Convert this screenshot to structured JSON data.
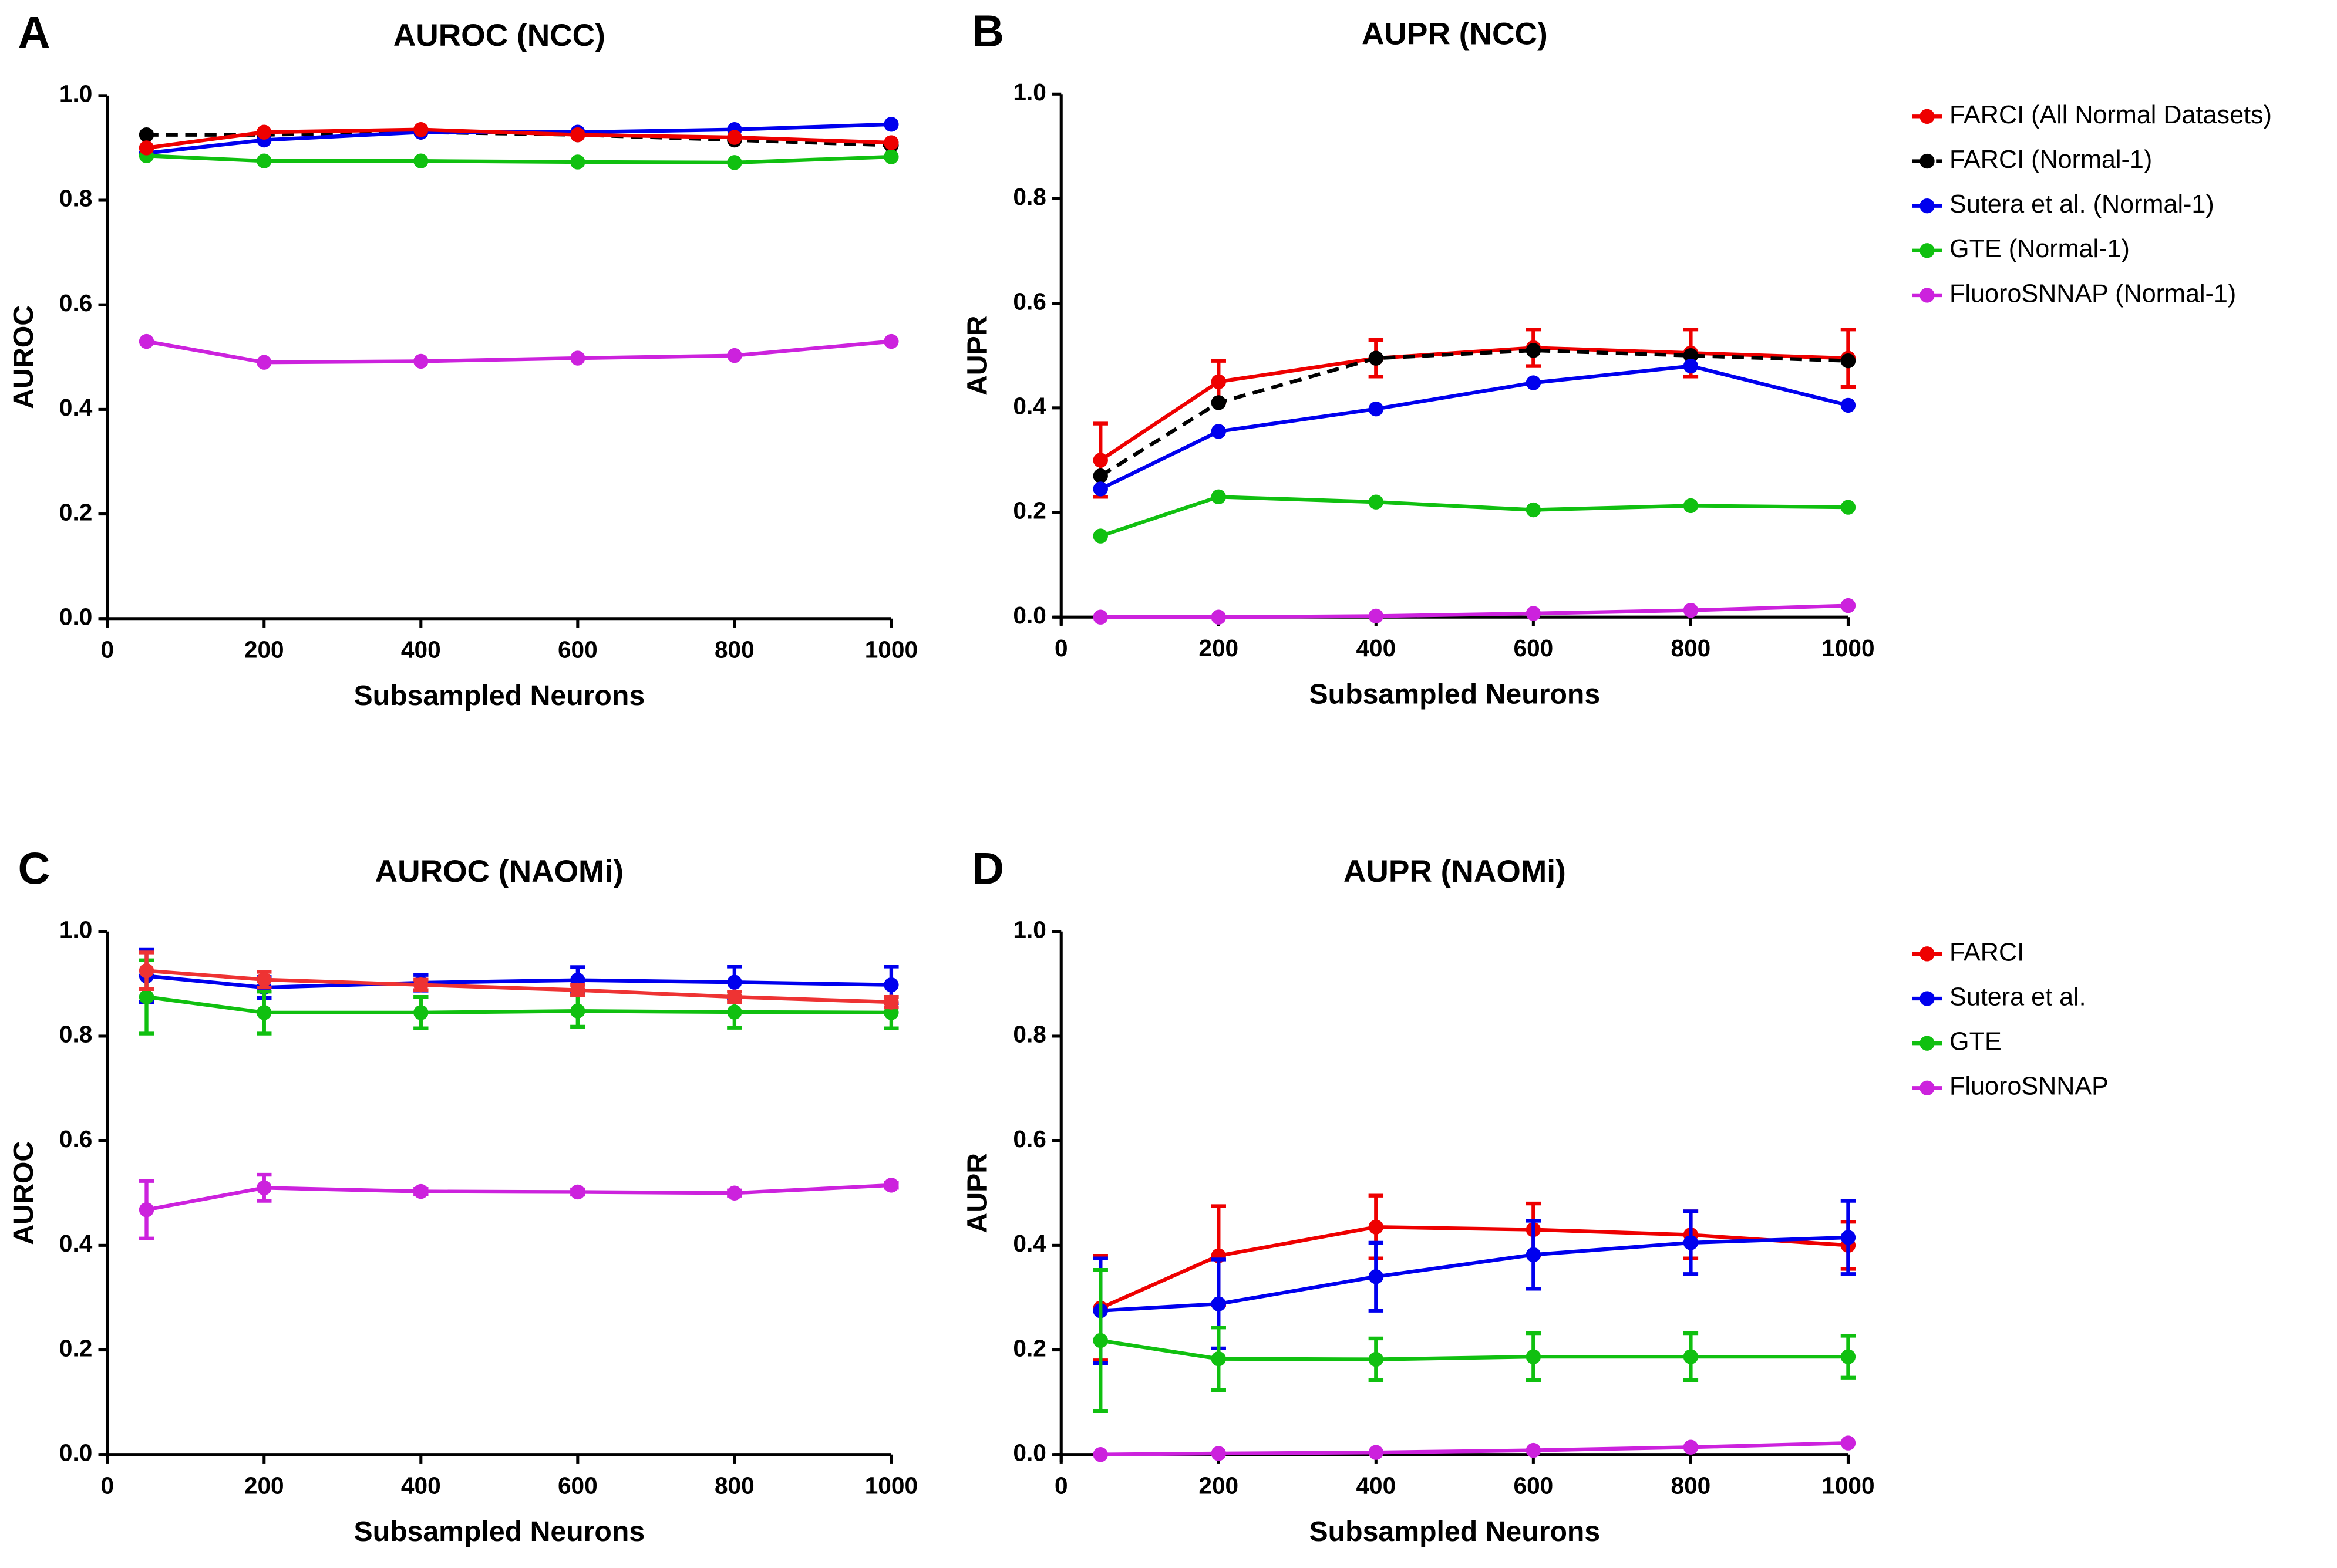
{
  "chart_data": [
    {
      "type": "line",
      "panel": "A",
      "title": "AUROC (NCC)",
      "xlabel": "Subsampled Neurons",
      "ylabel": "AUROC",
      "x": [
        50,
        200,
        400,
        600,
        800,
        1000
      ],
      "xlim": [
        0,
        1000
      ],
      "xticks": [
        0,
        200,
        400,
        600,
        800,
        1000
      ],
      "ylim": [
        0,
        1
      ],
      "yticks": [
        {
          "value": 0,
          "label": "0.0"
        },
        0.2,
        0.4,
        0.6,
        0.8,
        {
          "value": 1,
          "label": "1.0"
        }
      ],
      "series": [
        {
          "color": "#000000",
          "line_style": "dashed",
          "values": [
            0.925,
            0.925,
            0.93,
            0.925,
            0.915,
            0.905
          ]
        },
        {
          "color": "#0000ee",
          "line_style": "solid",
          "values": [
            0.89,
            0.915,
            0.93,
            0.93,
            0.935,
            0.945
          ]
        },
        {
          "color": "#10c010",
          "line_style": "solid",
          "values": [
            0.885,
            0.875,
            0.875,
            0.873,
            0.872,
            0.883
          ]
        },
        {
          "color": "#cc22dd",
          "line_style": "solid",
          "values": [
            0.53,
            0.49,
            0.492,
            0.498,
            0.503,
            0.53
          ]
        },
        {
          "color": "#ee0000",
          "line_style": "solid",
          "values": [
            0.9,
            0.93,
            0.935,
            0.925,
            0.92,
            0.91
          ]
        }
      ]
    },
    {
      "type": "line",
      "panel": "B",
      "title": "AUPR (NCC)",
      "xlabel": "Subsampled Neurons",
      "ylabel": "AUPR",
      "legend": "right",
      "x": [
        50,
        200,
        400,
        600,
        800,
        1000
      ],
      "xlim": [
        0,
        1000
      ],
      "xticks": [
        0,
        200,
        400,
        600,
        800,
        1000
      ],
      "ylim": [
        0,
        1
      ],
      "yticks": [
        {
          "value": 0,
          "label": "0.0"
        },
        0.2,
        0.4,
        0.6,
        0.8,
        {
          "value": 1,
          "label": "1.0"
        }
      ],
      "series": [
        {
          "name": "FARCI (All Normal Datasets)",
          "color": "#ee0000",
          "line_style": "solid",
          "values": [
            0.3,
            0.45,
            0.495,
            0.515,
            0.505,
            0.495
          ],
          "errors": [
            0.07,
            0.04,
            0.035,
            0.035,
            0.045,
            0.055
          ]
        },
        {
          "name": "FARCI (Normal-1)",
          "color": "#000000",
          "line_style": "dashed",
          "values": [
            0.27,
            0.41,
            0.495,
            0.51,
            0.5,
            0.49
          ]
        },
        {
          "name": "Sutera et al. (Normal-1)",
          "color": "#0000ee",
          "line_style": "solid",
          "values": [
            0.245,
            0.355,
            0.398,
            0.448,
            0.48,
            0.405
          ]
        },
        {
          "name": "GTE (Normal-1)",
          "color": "#10c010",
          "line_style": "solid",
          "values": [
            0.155,
            0.23,
            0.22,
            0.205,
            0.213,
            0.21
          ]
        },
        {
          "name": "FluoroSNNAP (Normal-1)",
          "color": "#cc22dd",
          "line_style": "solid",
          "values": [
            0,
            0,
            0.002,
            0.007,
            0.013,
            0.022
          ]
        }
      ]
    },
    {
      "type": "line",
      "panel": "C",
      "title": "AUROC (NAOMi)",
      "xlabel": "Subsampled Neurons",
      "ylabel": "AUROC",
      "x": [
        50,
        200,
        400,
        600,
        800,
        1000
      ],
      "xlim": [
        0,
        1000
      ],
      "xticks": [
        0,
        200,
        400,
        600,
        800,
        1000
      ],
      "ylim": [
        0,
        1
      ],
      "yticks": [
        {
          "value": 0,
          "label": "0.0"
        },
        0.2,
        0.4,
        0.6,
        0.8,
        {
          "value": 1,
          "label": "1.0"
        }
      ],
      "series": [
        {
          "color": "#0000ee",
          "line_style": "solid",
          "values": [
            0.915,
            0.893,
            0.902,
            0.907,
            0.903,
            0.898
          ],
          "errors": [
            0.05,
            0.02,
            0.015,
            0.025,
            0.03,
            0.035
          ]
        },
        {
          "color": "#10c010",
          "line_style": "solid",
          "values": [
            0.875,
            0.845,
            0.845,
            0.848,
            0.846,
            0.845
          ],
          "errors": [
            0.07,
            0.04,
            0.03,
            0.03,
            0.03,
            0.03
          ]
        },
        {
          "color": "#cc22dd",
          "line_style": "solid",
          "values": [
            0.468,
            0.51,
            0.503,
            0.502,
            0.5,
            0.515
          ],
          "errors": [
            0.055,
            0.025,
            0.005,
            0.005,
            0.005,
            0.005
          ]
        },
        {
          "color": "#ee3333",
          "line_style": "solid",
          "values": [
            0.925,
            0.908,
            0.898,
            0.888,
            0.875,
            0.865
          ],
          "errors": [
            0.035,
            0.015,
            0.01,
            0.01,
            0.01,
            0.01
          ]
        }
      ]
    },
    {
      "type": "line",
      "panel": "D",
      "title": "AUPR (NAOMi)",
      "xlabel": "Subsampled Neurons",
      "ylabel": "AUPR",
      "legend": "right",
      "x": [
        50,
        200,
        400,
        600,
        800,
        1000
      ],
      "xlim": [
        0,
        1000
      ],
      "xticks": [
        0,
        200,
        400,
        600,
        800,
        1000
      ],
      "ylim": [
        0,
        1
      ],
      "yticks": [
        {
          "value": 0,
          "label": "0.0"
        },
        0.2,
        0.4,
        0.6,
        0.8,
        {
          "value": 1,
          "label": "1.0"
        }
      ],
      "series": [
        {
          "name": "FARCI",
          "color": "#ee0000",
          "line_style": "solid",
          "values": [
            0.28,
            0.38,
            0.435,
            0.43,
            0.42,
            0.4
          ],
          "errors": [
            0.1,
            0.095,
            0.06,
            0.05,
            0.045,
            0.045
          ]
        },
        {
          "name": "Sutera et al.",
          "color": "#0000ee",
          "line_style": "solid",
          "values": [
            0.275,
            0.288,
            0.34,
            0.382,
            0.405,
            0.415
          ],
          "errors": [
            0.1,
            0.085,
            0.065,
            0.065,
            0.06,
            0.07
          ]
        },
        {
          "name": "GTE",
          "color": "#10c010",
          "line_style": "solid",
          "values": [
            0.218,
            0.183,
            0.182,
            0.187,
            0.187,
            0.187
          ],
          "errors": [
            0.135,
            0.06,
            0.04,
            0.045,
            0.045,
            0.04
          ]
        },
        {
          "name": "FluoroSNNAP",
          "color": "#cc22dd",
          "line_style": "solid",
          "values": [
            0,
            0.002,
            0.004,
            0.008,
            0.014,
            0.022
          ]
        }
      ]
    }
  ]
}
